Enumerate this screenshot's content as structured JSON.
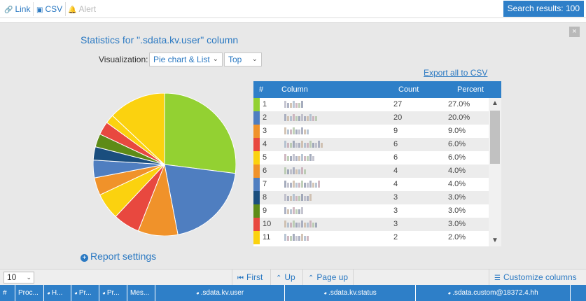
{
  "toolbar": {
    "link_label": "Link",
    "csv_label": "CSV",
    "alert_label": "Alert",
    "search_results": "Search results: 100"
  },
  "stats": {
    "title": "Statistics for \".sdata.kv.user\" column",
    "visualization_label": "Visualization:",
    "visualization_value": "Pie chart & List",
    "order_value": "Top",
    "export_label": "Export all to CSV",
    "report_settings_label": "Report settings",
    "close_icon": "×"
  },
  "table": {
    "headers": {
      "index": "#",
      "column": "Column",
      "count": "Count",
      "percent": "Percent"
    }
  },
  "chart_data": {
    "type": "pie",
    "title": "",
    "slices": [
      {
        "index": "1",
        "count": "27",
        "percent": "27.0%",
        "value": 27,
        "color": "#93d132"
      },
      {
        "index": "2",
        "count": "20",
        "percent": "20.0%",
        "value": 20,
        "color": "#4f7ec0"
      },
      {
        "index": "3",
        "count": "9",
        "percent": "9.0%",
        "value": 9,
        "color": "#f0922a"
      },
      {
        "index": "4",
        "count": "6",
        "percent": "6.0%",
        "value": 6,
        "color": "#e8483f"
      },
      {
        "index": "5",
        "count": "6",
        "percent": "6.0%",
        "value": 6,
        "color": "#fbd20f"
      },
      {
        "index": "6",
        "count": "4",
        "percent": "4.0%",
        "value": 4,
        "color": "#f0922a"
      },
      {
        "index": "7",
        "count": "4",
        "percent": "4.0%",
        "value": 4,
        "color": "#4f7ec0"
      },
      {
        "index": "8",
        "count": "3",
        "percent": "3.0%",
        "value": 3,
        "color": "#1a4e7e"
      },
      {
        "index": "9",
        "count": "3",
        "percent": "3.0%",
        "value": 3,
        "color": "#5e8b17"
      },
      {
        "index": "10",
        "count": "3",
        "percent": "3.0%",
        "value": 3,
        "color": "#e8483f"
      },
      {
        "index": "11",
        "count": "2",
        "percent": "2.0%",
        "value": 2,
        "color": "#fbd20f"
      }
    ],
    "other_value": 13,
    "other_color": "#fbd20f"
  },
  "pager": {
    "page_size": "10",
    "first_label": "First",
    "up_label": "Up",
    "page_up_label": "Page up",
    "customize_label": "Customize columns"
  },
  "columns": [
    {
      "label": "#"
    },
    {
      "label": "Proc..."
    },
    {
      "label": "H..."
    },
    {
      "label": "Pr..."
    },
    {
      "label": "Pr..."
    },
    {
      "label": "Mes..."
    },
    {
      "label": ".sdata.kv.user"
    },
    {
      "label": ".sdata.kv.status"
    },
    {
      "label": ".sdata.custom@18372.4.hh"
    }
  ]
}
